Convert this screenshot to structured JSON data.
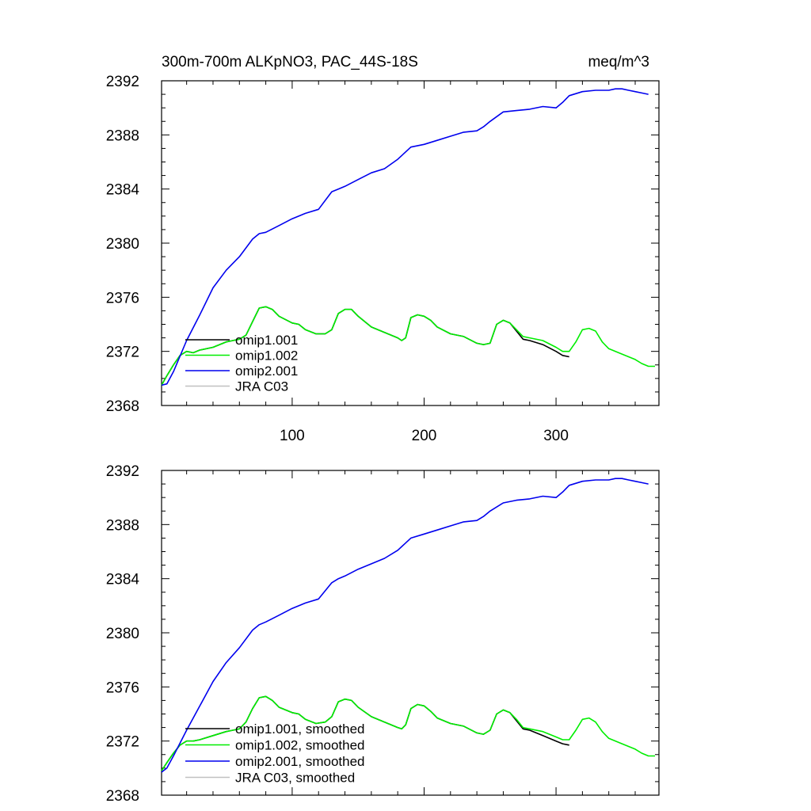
{
  "chart_data": [
    {
      "type": "line",
      "title": "300m-700m ALKpNO3, PAC_44S-18S",
      "units": "meq/m^3",
      "xlim": [
        1,
        378
      ],
      "ylim": [
        2368,
        2392
      ],
      "x_tick_labels": [
        "100",
        "200",
        "300"
      ],
      "x_ticks": [
        100,
        200,
        300
      ],
      "y_ticks": [
        2368,
        2372,
        2376,
        2380,
        2384,
        2388,
        2392
      ],
      "y_tick_labels": [
        "2368",
        "2372",
        "2376",
        "2380",
        "2384",
        "2388",
        "2392"
      ],
      "grid": false,
      "legend_position": "lower-left",
      "series": [
        {
          "name": "omip1.001",
          "color": "#000000",
          "x": [
            1,
            5,
            10,
            15,
            20,
            25,
            30,
            40,
            50,
            55,
            60,
            65,
            70,
            75,
            80,
            85,
            90,
            100,
            105,
            110,
            118,
            125,
            130,
            135,
            140,
            145,
            150,
            160,
            170,
            180,
            183,
            186,
            190,
            195,
            200,
            205,
            210,
            220,
            230,
            240,
            245,
            250,
            255,
            260,
            265,
            270,
            275,
            280,
            290,
            300,
            305,
            310
          ],
          "y": [
            2369.5,
            2370.2,
            2371.0,
            2371.7,
            2372.0,
            2371.9,
            2372.1,
            2372.3,
            2372.7,
            2372.8,
            2372.9,
            2373.2,
            2374.2,
            2375.2,
            2375.3,
            2375.1,
            2374.6,
            2374.1,
            2374.0,
            2373.6,
            2373.3,
            2373.3,
            2373.6,
            2374.8,
            2375.1,
            2375.1,
            2374.6,
            2373.8,
            2373.4,
            2373.0,
            2372.8,
            2373.0,
            2374.5,
            2374.7,
            2374.6,
            2374.3,
            2373.8,
            2373.3,
            2373.1,
            2372.6,
            2372.5,
            2372.6,
            2374.0,
            2374.3,
            2374.1,
            2373.5,
            2372.9,
            2372.8,
            2372.5,
            2372.0,
            2371.7,
            2371.6
          ]
        },
        {
          "name": "omip1.002",
          "color": "#00ee00",
          "x": [
            1,
            5,
            10,
            15,
            20,
            25,
            30,
            40,
            50,
            55,
            60,
            65,
            70,
            75,
            80,
            85,
            90,
            100,
            105,
            110,
            118,
            125,
            130,
            135,
            140,
            145,
            150,
            160,
            170,
            180,
            183,
            186,
            190,
            195,
            200,
            205,
            210,
            220,
            230,
            240,
            245,
            250,
            255,
            260,
            265,
            270,
            275,
            280,
            290,
            300,
            305,
            310,
            315,
            320,
            325,
            330,
            335,
            340,
            350,
            360,
            365,
            370,
            375
          ],
          "y": [
            2369.5,
            2370.2,
            2371.0,
            2371.7,
            2372.0,
            2371.9,
            2372.1,
            2372.3,
            2372.7,
            2372.8,
            2372.9,
            2373.2,
            2374.2,
            2375.2,
            2375.3,
            2375.1,
            2374.6,
            2374.1,
            2374.0,
            2373.6,
            2373.3,
            2373.3,
            2373.6,
            2374.8,
            2375.1,
            2375.1,
            2374.6,
            2373.8,
            2373.4,
            2373.0,
            2372.8,
            2373.0,
            2374.5,
            2374.7,
            2374.6,
            2374.3,
            2373.8,
            2373.3,
            2373.1,
            2372.6,
            2372.5,
            2372.6,
            2374.0,
            2374.3,
            2374.1,
            2373.6,
            2373.1,
            2373.0,
            2372.8,
            2372.3,
            2372.0,
            2372.0,
            2372.7,
            2373.6,
            2373.7,
            2373.5,
            2372.7,
            2372.2,
            2371.8,
            2371.4,
            2371.1,
            2370.9,
            2370.9
          ]
        },
        {
          "name": "omip2.001",
          "color": "#0000ee",
          "x": [
            1,
            5,
            10,
            20,
            30,
            40,
            50,
            60,
            70,
            75,
            80,
            90,
            100,
            110,
            120,
            130,
            135,
            140,
            150,
            160,
            170,
            180,
            190,
            200,
            210,
            220,
            230,
            240,
            245,
            250,
            260,
            270,
            280,
            290,
            300,
            305,
            310,
            320,
            330,
            340,
            345,
            350,
            355,
            360,
            365,
            370
          ],
          "y": [
            2369.5,
            2369.6,
            2370.5,
            2372.8,
            2374.7,
            2376.7,
            2378.0,
            2379.0,
            2380.3,
            2380.7,
            2380.8,
            2381.3,
            2381.8,
            2382.2,
            2382.5,
            2383.8,
            2384.0,
            2384.2,
            2384.7,
            2385.2,
            2385.5,
            2386.2,
            2387.1,
            2387.3,
            2387.6,
            2387.9,
            2388.2,
            2388.3,
            2388.6,
            2389.0,
            2389.7,
            2389.8,
            2389.9,
            2390.1,
            2390.0,
            2390.4,
            2390.9,
            2391.2,
            2391.3,
            2391.3,
            2391.4,
            2391.4,
            2391.3,
            2391.2,
            2391.1,
            2391.0
          ]
        },
        {
          "name": "JRA C03",
          "color": "#c0c0c0",
          "x": [],
          "y": []
        }
      ]
    },
    {
      "type": "line",
      "title": "",
      "units": "",
      "xlim": [
        1,
        378
      ],
      "ylim": [
        2368,
        2392
      ],
      "x_tick_labels": [],
      "x_ticks": [
        100,
        200,
        300
      ],
      "y_ticks": [
        2368,
        2372,
        2376,
        2380,
        2384,
        2388,
        2392
      ],
      "y_tick_labels": [
        "2368",
        "2372",
        "2376",
        "2380",
        "2384",
        "2388",
        "2392"
      ],
      "grid": false,
      "legend_position": "lower-left",
      "series": [
        {
          "name": "omip1.001, smoothed",
          "color": "#000000",
          "x": [
            1,
            5,
            10,
            15,
            20,
            25,
            30,
            40,
            50,
            55,
            60,
            65,
            70,
            75,
            80,
            85,
            90,
            100,
            105,
            110,
            118,
            125,
            130,
            135,
            140,
            145,
            150,
            160,
            170,
            180,
            183,
            186,
            190,
            195,
            200,
            205,
            210,
            220,
            230,
            240,
            245,
            250,
            255,
            260,
            265,
            270,
            275,
            280,
            290,
            300,
            305,
            310
          ],
          "y": [
            2369.8,
            2370.4,
            2371.1,
            2371.7,
            2372.0,
            2372.0,
            2372.1,
            2372.4,
            2372.7,
            2372.8,
            2372.9,
            2373.4,
            2374.4,
            2375.2,
            2375.3,
            2375.0,
            2374.5,
            2374.1,
            2374.0,
            2373.6,
            2373.3,
            2373.4,
            2373.8,
            2374.9,
            2375.1,
            2375.0,
            2374.5,
            2373.8,
            2373.4,
            2373.0,
            2372.9,
            2373.2,
            2374.4,
            2374.7,
            2374.6,
            2374.2,
            2373.7,
            2373.3,
            2373.1,
            2372.6,
            2372.5,
            2372.8,
            2374.0,
            2374.3,
            2374.1,
            2373.5,
            2372.9,
            2372.8,
            2372.4,
            2372.0,
            2371.8,
            2371.7
          ]
        },
        {
          "name": "omip1.002, smoothed",
          "color": "#00ee00",
          "x": [
            1,
            5,
            10,
            15,
            20,
            25,
            30,
            40,
            50,
            55,
            60,
            65,
            70,
            75,
            80,
            85,
            90,
            100,
            105,
            110,
            118,
            125,
            130,
            135,
            140,
            145,
            150,
            160,
            170,
            180,
            183,
            186,
            190,
            195,
            200,
            205,
            210,
            220,
            230,
            240,
            245,
            250,
            255,
            260,
            265,
            270,
            275,
            280,
            290,
            300,
            305,
            310,
            315,
            320,
            325,
            330,
            335,
            340,
            350,
            360,
            365,
            370,
            375
          ],
          "y": [
            2369.8,
            2370.4,
            2371.1,
            2371.7,
            2372.0,
            2372.0,
            2372.1,
            2372.4,
            2372.7,
            2372.8,
            2372.9,
            2373.4,
            2374.4,
            2375.2,
            2375.3,
            2375.0,
            2374.5,
            2374.1,
            2374.0,
            2373.6,
            2373.3,
            2373.4,
            2373.8,
            2374.9,
            2375.1,
            2375.0,
            2374.5,
            2373.8,
            2373.4,
            2373.0,
            2372.9,
            2373.2,
            2374.4,
            2374.7,
            2374.6,
            2374.2,
            2373.7,
            2373.3,
            2373.1,
            2372.6,
            2372.5,
            2372.8,
            2374.0,
            2374.3,
            2374.1,
            2373.6,
            2373.0,
            2372.9,
            2372.7,
            2372.3,
            2372.1,
            2372.1,
            2372.8,
            2373.6,
            2373.7,
            2373.4,
            2372.7,
            2372.2,
            2371.8,
            2371.4,
            2371.1,
            2370.9,
            2370.9
          ]
        },
        {
          "name": "omip2.001, smoothed",
          "color": "#0000ee",
          "x": [
            1,
            5,
            10,
            20,
            30,
            40,
            50,
            60,
            70,
            75,
            80,
            90,
            100,
            110,
            120,
            130,
            135,
            140,
            150,
            160,
            170,
            180,
            190,
            200,
            210,
            220,
            230,
            240,
            245,
            250,
            260,
            270,
            280,
            290,
            300,
            305,
            310,
            320,
            330,
            340,
            345,
            350,
            355,
            360,
            365,
            370
          ],
          "y": [
            2369.7,
            2370.0,
            2370.9,
            2372.8,
            2374.6,
            2376.4,
            2377.8,
            2378.9,
            2380.2,
            2380.6,
            2380.8,
            2381.3,
            2381.8,
            2382.2,
            2382.5,
            2383.7,
            2384.0,
            2384.2,
            2384.7,
            2385.1,
            2385.5,
            2386.1,
            2387.0,
            2387.3,
            2387.6,
            2387.9,
            2388.2,
            2388.3,
            2388.6,
            2389.0,
            2389.6,
            2389.8,
            2389.9,
            2390.1,
            2390.0,
            2390.4,
            2390.9,
            2391.2,
            2391.3,
            2391.3,
            2391.4,
            2391.4,
            2391.3,
            2391.2,
            2391.1,
            2391.0
          ]
        },
        {
          "name": "JRA C03, smoothed",
          "color": "#c0c0c0",
          "x": [],
          "y": []
        }
      ]
    }
  ]
}
